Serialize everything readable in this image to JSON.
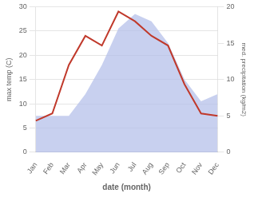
{
  "chart_data": {
    "type": "line",
    "categories": [
      "Jan",
      "Feb",
      "Mar",
      "Apr",
      "May",
      "Jun",
      "Jul",
      "Aug",
      "Sep",
      "Oct",
      "Nov",
      "Dec"
    ],
    "xlabel": "date (month)",
    "ylabel": "max temp (C)",
    "y2label": "med. precipitation (kg/m2)",
    "series": [
      {
        "type": "line",
        "color": "#c0392b",
        "values": [
          6.5,
          8.0,
          18.0,
          24.0,
          22.0,
          29.0,
          27.0,
          24.0,
          22.0,
          14.0,
          8.0,
          7.5
        ]
      },
      {
        "type": "area",
        "color": "#b0bce8",
        "axis": "y2",
        "values": [
          5.0,
          5.0,
          5.0,
          8.0,
          12.0,
          17.0,
          19.0,
          18.0,
          15.0,
          10.0,
          7.0,
          8.0
        ]
      }
    ],
    "ylim": [
      0,
      30
    ],
    "yticks": [
      0,
      5,
      10,
      15,
      20,
      25,
      30
    ],
    "y2lim": [
      0,
      20
    ],
    "y2ticks": [
      0,
      5,
      10,
      15,
      20
    ],
    "grid": true
  }
}
